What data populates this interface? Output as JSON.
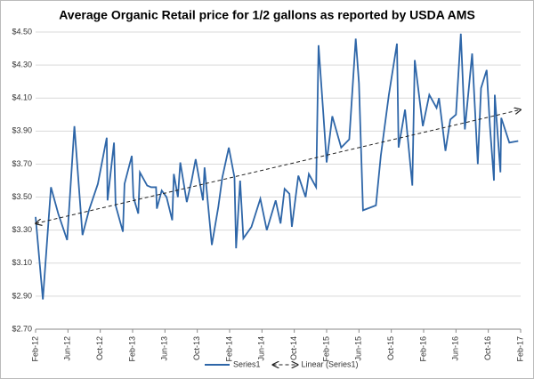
{
  "chart_data": {
    "type": "line",
    "title": "Average Organic Retail price for 1/2 gallons as reported by USDA AMS",
    "xlim": [
      0,
      60
    ],
    "xticks": [
      {
        "value": 0,
        "label": "Feb-12"
      },
      {
        "value": 4,
        "label": "Jun-12"
      },
      {
        "value": 8,
        "label": "Oct-12"
      },
      {
        "value": 12,
        "label": "Feb-13"
      },
      {
        "value": 16,
        "label": "Jun-13"
      },
      {
        "value": 20,
        "label": "Oct-13"
      },
      {
        "value": 24,
        "label": "Feb-14"
      },
      {
        "value": 28,
        "label": "Jun-14"
      },
      {
        "value": 32,
        "label": "Oct-14"
      },
      {
        "value": 36,
        "label": "Feb-15"
      },
      {
        "value": 40,
        "label": "Jun-15"
      },
      {
        "value": 44,
        "label": "Oct-15"
      },
      {
        "value": 48,
        "label": "Feb-16"
      },
      {
        "value": 52,
        "label": "Jun-16"
      },
      {
        "value": 56,
        "label": "Oct-16"
      },
      {
        "value": 60,
        "label": "Feb-17"
      }
    ],
    "ylim": [
      2.7,
      4.5
    ],
    "yticks": [
      {
        "value": 2.7,
        "label": "$2.70"
      },
      {
        "value": 2.9,
        "label": "$2.90"
      },
      {
        "value": 3.1,
        "label": "$3.10"
      },
      {
        "value": 3.3,
        "label": "$3.30"
      },
      {
        "value": 3.5,
        "label": "$3.50"
      },
      {
        "value": 3.7,
        "label": "$3.70"
      },
      {
        "value": 3.9,
        "label": "$3.90"
      },
      {
        "value": 4.1,
        "label": "$4.10"
      },
      {
        "value": 4.3,
        "label": "$4.30"
      },
      {
        "value": 4.5,
        "label": "$4.50"
      }
    ],
    "grid": true,
    "legend": "bottom",
    "series": [
      {
        "name": "Series1",
        "color": "#2e66a8",
        "style": "solid",
        "x": [
          0,
          0.9,
          1.9,
          2.8,
          3.9,
          4.8,
          5.8,
          6.6,
          7.7,
          8.8,
          8.9,
          9.7,
          9.9,
          10.8,
          11.0,
          11.9,
          12.1,
          12.7,
          12.9,
          13.8,
          14.3,
          14.9,
          15.0,
          15.6,
          16.2,
          16.9,
          17.1,
          17.6,
          17.9,
          18.7,
          19.3,
          19.8,
          20.7,
          20.9,
          21.8,
          22.6,
          23.1,
          23.9,
          24.6,
          24.8,
          25.3,
          25.7,
          26.7,
          27.8,
          28.6,
          29.7,
          30.3,
          30.8,
          31.4,
          31.7,
          32.5,
          33.4,
          33.8,
          34.7,
          35.0,
          35.6,
          36.0,
          36.7,
          37.8,
          38.8,
          39.6,
          40.0,
          40.5,
          42.1,
          42.7,
          43.7,
          44.7,
          44.9,
          45.7,
          46.6,
          46.9,
          47.9,
          48.7,
          49.6,
          49.9,
          50.7,
          51.3,
          52.0,
          52.6,
          53.1,
          54.0,
          54.3,
          54.7,
          55.1,
          55.8,
          56.2,
          56.7,
          56.8,
          57.5,
          57.6,
          58.6,
          59.7
        ],
        "values": [
          3.38,
          2.88,
          3.56,
          3.4,
          3.24,
          3.93,
          3.27,
          3.42,
          3.58,
          3.86,
          3.48,
          3.83,
          3.45,
          3.29,
          3.58,
          3.75,
          3.5,
          3.4,
          3.65,
          3.57,
          3.56,
          3.56,
          3.43,
          3.54,
          3.5,
          3.36,
          3.64,
          3.5,
          3.71,
          3.47,
          3.6,
          3.73,
          3.48,
          3.68,
          3.21,
          3.44,
          3.62,
          3.8,
          3.62,
          3.19,
          3.6,
          3.25,
          3.32,
          3.49,
          3.3,
          3.48,
          3.34,
          3.55,
          3.52,
          3.32,
          3.63,
          3.5,
          3.64,
          3.56,
          4.42,
          4.0,
          3.71,
          3.99,
          3.8,
          3.85,
          4.46,
          4.19,
          3.42,
          3.45,
          3.75,
          4.12,
          4.43,
          3.8,
          4.03,
          3.57,
          4.33,
          3.93,
          4.12,
          4.04,
          4.1,
          3.78,
          3.97,
          4.0,
          4.49,
          3.91,
          4.37,
          4.08,
          3.7,
          4.16,
          4.27,
          3.93,
          3.6,
          4.12,
          3.65,
          3.98,
          3.83,
          3.84
        ]
      },
      {
        "name": "Linear (Series1)",
        "color": "#222222",
        "style": "dashed",
        "x": [
          0,
          60
        ],
        "values": [
          3.34,
          4.03
        ]
      }
    ]
  }
}
